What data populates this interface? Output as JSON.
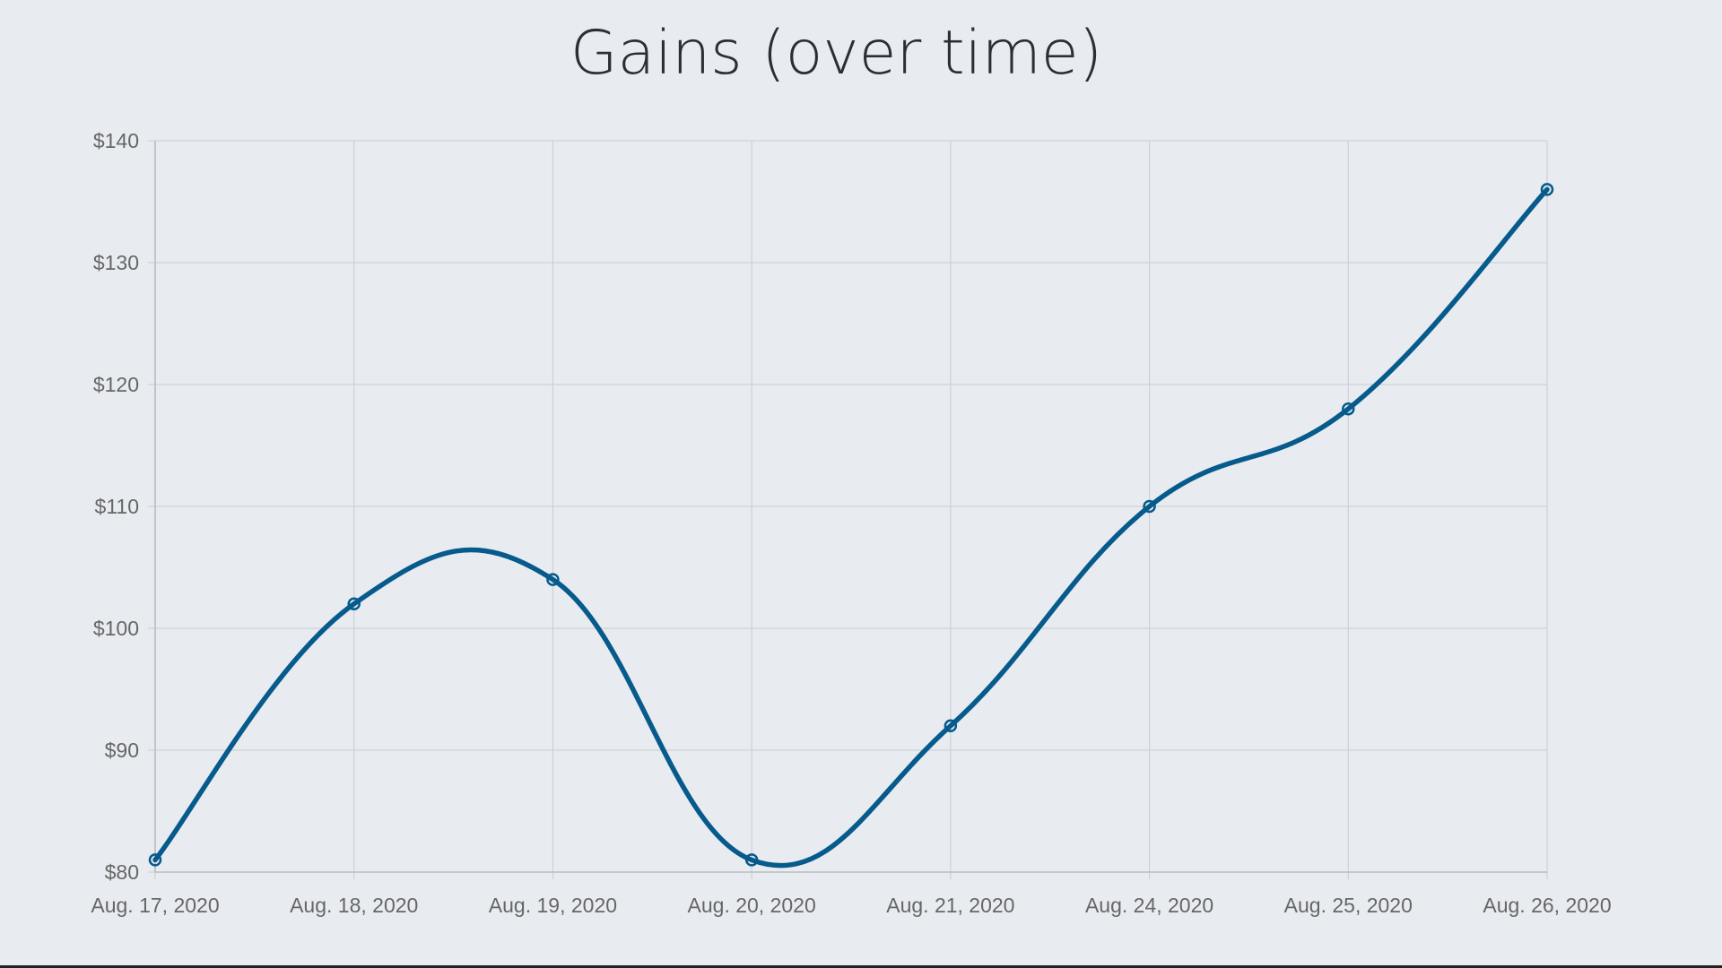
{
  "chart_data": {
    "type": "line",
    "title": "Gains (over time)",
    "xlabel": "",
    "ylabel": "",
    "categories": [
      "Aug. 17, 2020",
      "Aug. 18, 2020",
      "Aug. 19, 2020",
      "Aug. 20, 2020",
      "Aug. 21, 2020",
      "Aug. 24, 2020",
      "Aug. 25, 2020",
      "Aug. 26, 2020"
    ],
    "series": [
      {
        "values": [
          81,
          102,
          104,
          81,
          92,
          110,
          118,
          136
        ]
      }
    ],
    "ylim": [
      80,
      140
    ],
    "yticks": [
      80,
      90,
      100,
      110,
      120,
      130,
      140
    ],
    "ytick_labels": [
      "$80",
      "$90",
      "$100",
      "$110",
      "$120",
      "$130",
      "$140"
    ],
    "grid": true,
    "legend": "none",
    "smooth": true,
    "colors": {
      "line": "#065a8c",
      "grid": "#cdd1d6",
      "axis": "#b9bdc2",
      "background": "#e8ecf0"
    }
  }
}
